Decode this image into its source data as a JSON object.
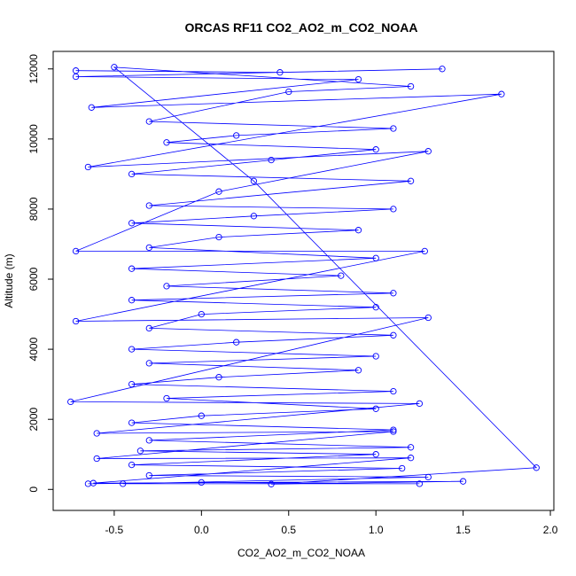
{
  "chart_data": {
    "type": "scatter",
    "title": "ORCAS RF11 CO2_AO2_m_CO2_NOAA",
    "xlabel": "CO2_AO2_m_CO2_NOAA",
    "ylabel": "Altitude (m)",
    "xlim": [
      -0.85,
      2.02
    ],
    "ylim": [
      -600,
      12500
    ],
    "x_ticks": [
      -0.5,
      0.0,
      0.5,
      1.0,
      1.5,
      2.0
    ],
    "x_tick_labels": [
      "-0.5",
      "0.0",
      "0.5",
      "1.0",
      "1.5",
      "2.0"
    ],
    "y_ticks": [
      0,
      2000,
      4000,
      6000,
      8000,
      10000,
      12000
    ],
    "y_tick_labels": [
      "0",
      "2000",
      "4000",
      "6000",
      "8000",
      "10000",
      "12000"
    ],
    "grid": false,
    "series": [
      {
        "color": "#0000ff",
        "marker": "open-circle",
        "connected": true,
        "points": [
          [
            -0.72,
            11950
          ],
          [
            0.45,
            11900
          ],
          [
            1.38,
            12000
          ],
          [
            -0.72,
            11780
          ],
          [
            0.9,
            11700
          ],
          [
            -0.63,
            10900
          ],
          [
            1.72,
            11280
          ],
          [
            -0.65,
            9200
          ],
          [
            1.3,
            9650
          ],
          [
            0.1,
            8500
          ],
          [
            -0.72,
            6800
          ],
          [
            1.28,
            6800
          ],
          [
            -0.72,
            4800
          ],
          [
            1.3,
            4900
          ],
          [
            -0.75,
            2500
          ],
          [
            1.25,
            2450
          ],
          [
            -0.6,
            1600
          ],
          [
            1.1,
            1650
          ],
          [
            -0.6,
            880
          ],
          [
            1.2,
            900
          ],
          [
            -0.62,
            180
          ],
          [
            1.5,
            230
          ],
          [
            0.4,
            150
          ],
          [
            1.92,
            620
          ],
          [
            0.3,
            8800
          ],
          [
            -0.5,
            12050
          ],
          [
            1.2,
            11500
          ],
          [
            0.5,
            11350
          ],
          [
            -0.3,
            10500
          ],
          [
            1.1,
            10300
          ],
          [
            0.2,
            10100
          ],
          [
            -0.2,
            9900
          ],
          [
            1.0,
            9700
          ],
          [
            0.4,
            9400
          ],
          [
            -0.4,
            9000
          ],
          [
            1.2,
            8800
          ],
          [
            -0.3,
            8100
          ],
          [
            1.1,
            8000
          ],
          [
            0.3,
            7800
          ],
          [
            -0.4,
            7600
          ],
          [
            0.9,
            7400
          ],
          [
            0.1,
            7200
          ],
          [
            -0.3,
            6900
          ],
          [
            1.0,
            6600
          ],
          [
            -0.4,
            6300
          ],
          [
            0.8,
            6100
          ],
          [
            -0.2,
            5800
          ],
          [
            1.1,
            5600
          ],
          [
            -0.4,
            5400
          ],
          [
            1.0,
            5200
          ],
          [
            0.0,
            5000
          ],
          [
            -0.3,
            4600
          ],
          [
            1.1,
            4400
          ],
          [
            0.2,
            4200
          ],
          [
            -0.4,
            4000
          ],
          [
            1.0,
            3800
          ],
          [
            -0.3,
            3600
          ],
          [
            0.9,
            3400
          ],
          [
            0.1,
            3200
          ],
          [
            -0.4,
            3000
          ],
          [
            1.1,
            2800
          ],
          [
            -0.2,
            2600
          ],
          [
            1.0,
            2300
          ],
          [
            0.0,
            2100
          ],
          [
            -0.4,
            1900
          ],
          [
            1.1,
            1700
          ],
          [
            -0.3,
            1400
          ],
          [
            1.2,
            1200
          ],
          [
            -0.35,
            1100
          ],
          [
            1.0,
            1000
          ],
          [
            -0.4,
            700
          ],
          [
            1.15,
            600
          ],
          [
            -0.3,
            400
          ],
          [
            1.3,
            350
          ],
          [
            -0.45,
            160
          ],
          [
            1.25,
            160
          ],
          [
            0.0,
            200
          ],
          [
            -0.65,
            160
          ]
        ]
      }
    ]
  }
}
